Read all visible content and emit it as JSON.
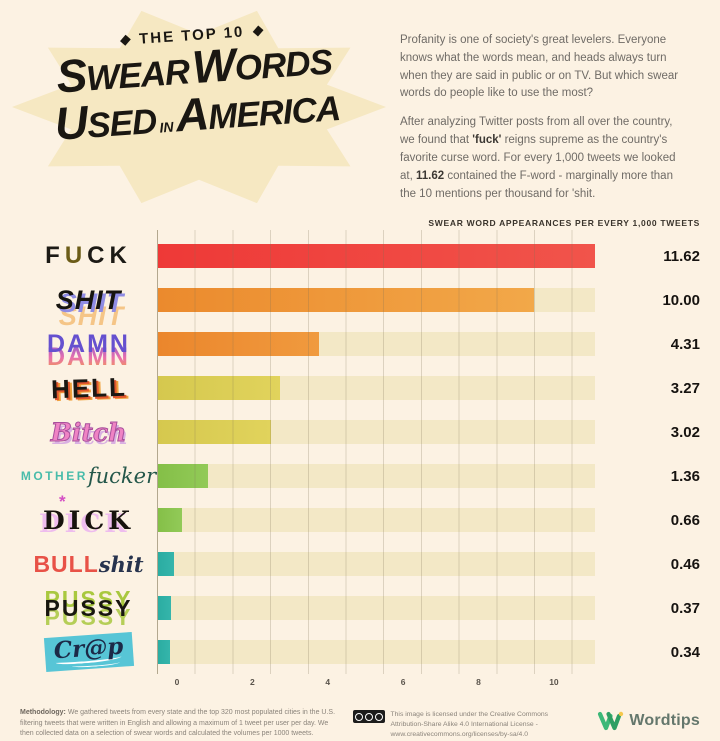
{
  "header": {
    "kicker": "THE TOP 10",
    "title_line1": {
      "big1": "S",
      "rest1": "WEAR",
      "big2": "W",
      "rest2": "ORDS"
    },
    "title_line2": {
      "big1": "U",
      "rest1": "SED",
      "mid": "IN",
      "big2": "A",
      "rest2": "MERICA"
    }
  },
  "intro": {
    "p1": "Profanity is one of society's great levelers. Everyone knows what the words mean, and heads always turn when they are said in public or on TV. But which swear words do people like to use the most?",
    "p2_pre": "After analyzing Twitter posts from all over the country, we found that ",
    "p2_bold1": "'fuck'",
    "p2_mid": " reigns supreme as the country's favorite curse word. For every 1,000 tweets we looked at, ",
    "p2_bold2": "11.62",
    "p2_post": " contained the F-word - marginally more than the 10 mentions per thousand for 'shit."
  },
  "chart": {
    "title": "SWEAR WORD APPEARANCES PER EVERY 1,000 TWEETS"
  },
  "chart_data": {
    "type": "bar",
    "orientation": "horizontal",
    "title": "SWEAR WORD APPEARANCES PER EVERY 1,000 TWEETS",
    "categories": [
      "Fuck",
      "Shit",
      "Damn",
      "Hell",
      "Bitch",
      "Motherfucker",
      "Dick",
      "Bullshit",
      "Pussy",
      "Crap"
    ],
    "values": [
      11.62,
      10.0,
      4.31,
      3.27,
      3.02,
      1.36,
      0.66,
      0.46,
      0.37,
      0.34
    ],
    "xlim": [
      0,
      11.62
    ],
    "x_ticks": [
      0,
      2,
      4,
      6,
      8,
      10
    ],
    "grid": "dotted vertical lines every 1 unit",
    "track_color": "#f3e8c6",
    "bar_palette": [
      "red",
      "orange",
      "orange",
      "yellow",
      "yellow",
      "green",
      "green",
      "teal",
      "teal",
      "teal"
    ]
  },
  "rows": [
    {
      "parts": {
        "f": "F",
        "u": "U",
        "ck": "CK"
      },
      "value": "11.62",
      "color1": "#ee3937",
      "color2": "#f1544b"
    },
    {
      "label": "SHIT",
      "value": "10.00",
      "color1": "#eb8a2d",
      "color2": "#f2a849"
    },
    {
      "label": "DAMN",
      "value": "4.31",
      "color1": "#eb862c",
      "color2": "#f09a3e"
    },
    {
      "label": "HELL",
      "value": "3.27",
      "color1": "#d5c84e",
      "color2": "#e1d35c"
    },
    {
      "label": "Bitch",
      "value": "3.02",
      "color1": "#d5c84e",
      "color2": "#e1d35c"
    },
    {
      "parts": {
        "mother": "MOTHER",
        "fucker": "fucker"
      },
      "value": "1.36",
      "color1": "#84bf47",
      "color2": "#92ca58"
    },
    {
      "label": "DICK",
      "asterisk": "*",
      "value": "0.66",
      "color1": "#84bf47",
      "color2": "#92ca58"
    },
    {
      "parts": {
        "bull": "BULL",
        "shit": "shit"
      },
      "value": "0.46",
      "color1": "#2aaca1",
      "color2": "#35b5ab"
    },
    {
      "label": "PUSSY",
      "value": "0.37",
      "color1": "#2aaca1",
      "color2": "#35b5ab"
    },
    {
      "label": "Cr@p",
      "value": "0.34",
      "color1": "#2aaca1",
      "color2": "#35b5ab"
    }
  ],
  "axis": {
    "ticks": [
      "0",
      "2",
      "4",
      "6",
      "8",
      "10"
    ]
  },
  "footer": {
    "methodology_label": "Methodology:",
    "methodology_text": " We gathered tweets from every state and the top 320 most populated cities in the U.S. filtering tweets that were written in English and allowing a maximum of 1 tweet per user per day. We then collected data on a selection of swear words and calculated the volumes per 1000 tweets.",
    "license_text": "This image is licensed under the Creative Commons Attribution-Share Alike 4.0 International License - www.creativecommons.org/licenses/by-sa/4.0",
    "logo_name": "Wordtips"
  }
}
